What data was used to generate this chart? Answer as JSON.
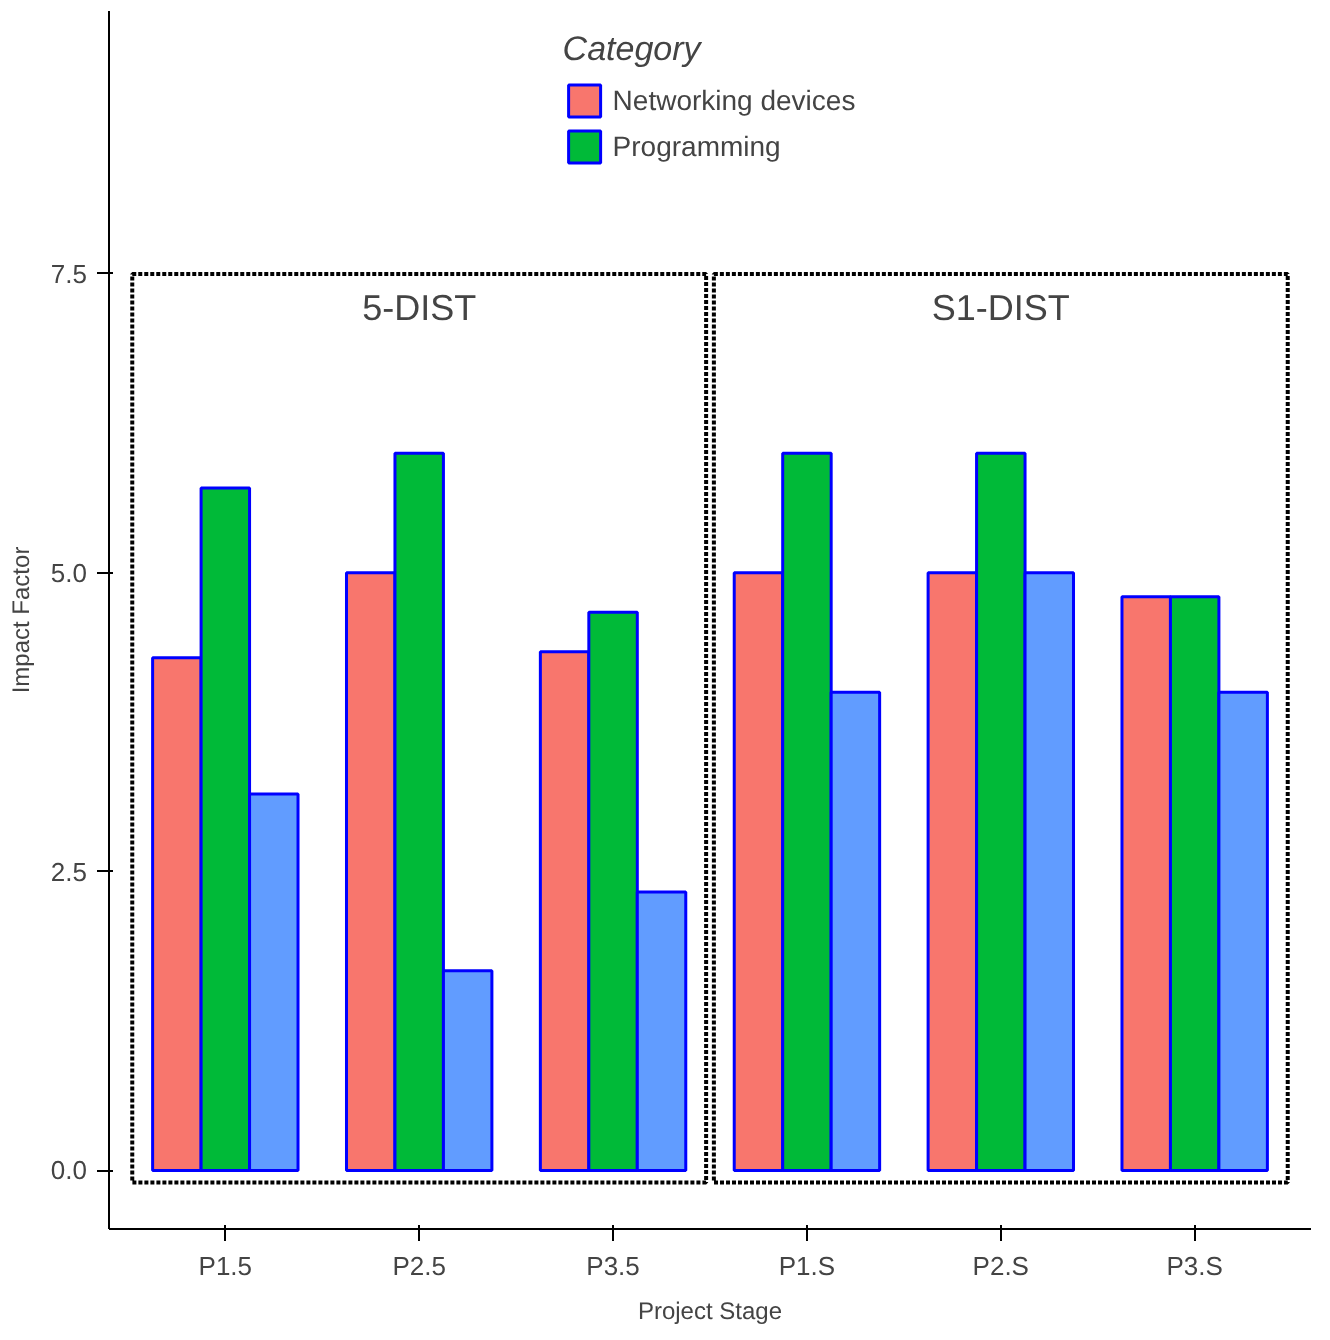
{
  "chart_data": {
    "type": "bar",
    "xlabel": "Project Stage",
    "ylabel": "Impact Factor",
    "legend_title": "Category",
    "categories": [
      "P1.5",
      "P2.5",
      "P3.5",
      "P1.S",
      "P2.S",
      "P3.S"
    ],
    "series": [
      {
        "name": "Networking devices",
        "color": "#f8766d",
        "values": [
          4.29,
          5.0,
          4.34,
          5.0,
          5.0,
          4.8
        ]
      },
      {
        "name": "Programming",
        "color": "#00ba38",
        "values": [
          5.71,
          6.0,
          4.67,
          6.0,
          6.0,
          4.8
        ]
      },
      {
        "color": "#619cff",
        "values": [
          3.15,
          1.67,
          2.33,
          4.0,
          5.0,
          4.0
        ]
      }
    ],
    "annotations": [
      "5-DIST",
      "S1-DIST"
    ],
    "ylim": [
      -0.49,
      9.7
    ],
    "yticks": [
      {
        "value": 0,
        "label": "0.0"
      },
      2.5,
      {
        "value": 5,
        "label": "5.0"
      },
      7.5
    ],
    "legend": "top"
  }
}
